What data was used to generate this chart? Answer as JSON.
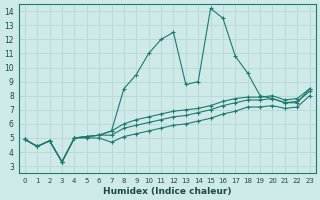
{
  "xlabel": "Humidex (Indice chaleur)",
  "bg_color": "#ceeae8",
  "grid_color": "#b8d8d4",
  "line_color": "#1a7a6e",
  "xlim": [
    -0.5,
    23.5
  ],
  "ylim": [
    2.5,
    14.5
  ],
  "xticks": [
    0,
    1,
    2,
    3,
    4,
    5,
    6,
    7,
    8,
    9,
    10,
    11,
    12,
    13,
    14,
    15,
    16,
    17,
    18,
    19,
    20,
    21,
    22,
    23
  ],
  "yticks": [
    3,
    4,
    5,
    6,
    7,
    8,
    9,
    10,
    11,
    12,
    13,
    14
  ],
  "series": [
    {
      "x": [
        0,
        1,
        2,
        3,
        4,
        5,
        6,
        7,
        8,
        9,
        10,
        11,
        12,
        13,
        14,
        15,
        16,
        17,
        18,
        19,
        20,
        21,
        22,
        23
      ],
      "y": [
        4.9,
        4.4,
        4.8,
        3.3,
        5.0,
        5.1,
        5.2,
        5.5,
        8.5,
        9.5,
        11.0,
        12.0,
        12.5,
        8.8,
        9.0,
        14.2,
        13.5,
        10.8,
        9.6,
        8.0,
        7.8,
        7.5,
        7.5,
        8.5
      ]
    },
    {
      "x": [
        0,
        1,
        2,
        3,
        4,
        5,
        6,
        7,
        8,
        9,
        10,
        11,
        12,
        13,
        14,
        15,
        16,
        17,
        18,
        19,
        20,
        21,
        22,
        23
      ],
      "y": [
        4.9,
        4.4,
        4.8,
        3.3,
        5.0,
        5.1,
        5.2,
        5.5,
        6.0,
        6.3,
        6.5,
        6.7,
        6.9,
        7.0,
        7.1,
        7.3,
        7.6,
        7.8,
        7.9,
        7.9,
        8.0,
        7.7,
        7.8,
        8.5
      ]
    },
    {
      "x": [
        0,
        1,
        2,
        3,
        4,
        5,
        6,
        7,
        8,
        9,
        10,
        11,
        12,
        13,
        14,
        15,
        16,
        17,
        18,
        19,
        20,
        21,
        22,
        23
      ],
      "y": [
        4.9,
        4.4,
        4.8,
        3.3,
        5.0,
        5.1,
        5.2,
        5.2,
        5.7,
        5.9,
        6.1,
        6.3,
        6.5,
        6.6,
        6.8,
        7.0,
        7.3,
        7.5,
        7.7,
        7.7,
        7.8,
        7.5,
        7.6,
        8.3
      ]
    },
    {
      "x": [
        0,
        1,
        2,
        3,
        4,
        5,
        6,
        7,
        8,
        9,
        10,
        11,
        12,
        13,
        14,
        15,
        16,
        17,
        18,
        19,
        20,
        21,
        22,
        23
      ],
      "y": [
        4.9,
        4.4,
        4.8,
        3.3,
        5.0,
        5.0,
        5.0,
        4.7,
        5.1,
        5.3,
        5.5,
        5.7,
        5.9,
        6.0,
        6.2,
        6.4,
        6.7,
        6.9,
        7.2,
        7.2,
        7.3,
        7.1,
        7.2,
        8.0
      ]
    }
  ]
}
